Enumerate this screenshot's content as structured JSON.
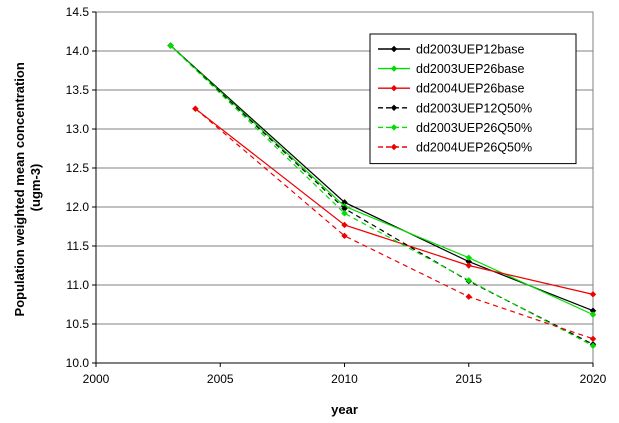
{
  "chart_data": {
    "type": "line",
    "title": "",
    "xlabel": "year",
    "ylabel": "Population weighted mean concentration (ugm-3)",
    "ylabel_lines": [
      "Population weighted mean concentration",
      "(ugm-3)"
    ],
    "xlim": [
      2000,
      2020
    ],
    "ylim": [
      10.0,
      14.5
    ],
    "x_ticks": [
      2000,
      2005,
      2010,
      2015,
      2020
    ],
    "y_ticks": [
      10.0,
      10.5,
      11.0,
      11.5,
      12.0,
      12.5,
      13.0,
      13.5,
      14.0,
      14.5
    ],
    "x_tick_labels": [
      "2000",
      "2005",
      "2010",
      "2015",
      "2020"
    ],
    "y_tick_labels": [
      "10.0",
      "10.5",
      "11.0",
      "11.5",
      "12.0",
      "12.5",
      "13.0",
      "13.5",
      "14.0",
      "14.5"
    ],
    "grid": "horizontal",
    "legend_position": "top-right",
    "series": [
      {
        "name": "dd2003UEP12base",
        "color": "#000000",
        "dashed": false,
        "x": [
          2003,
          2010,
          2015,
          2020
        ],
        "y": [
          14.07,
          12.06,
          11.3,
          10.67
        ]
      },
      {
        "name": "dd2003UEP26base",
        "color": "#00dd00",
        "dashed": false,
        "x": [
          2003,
          2010,
          2015,
          2020
        ],
        "y": [
          14.07,
          12.01,
          11.35,
          10.62
        ]
      },
      {
        "name": "dd2004UEP26base",
        "color": "#ee0000",
        "dashed": false,
        "x": [
          2004,
          2010,
          2015,
          2020
        ],
        "y": [
          13.26,
          11.77,
          11.25,
          10.88
        ]
      },
      {
        "name": "dd2003UEP12Q50%",
        "color": "#000000",
        "dashed": true,
        "x": [
          2003,
          2010,
          2015,
          2020
        ],
        "y": [
          14.07,
          11.98,
          11.05,
          10.24
        ]
      },
      {
        "name": "dd2003UEP26Q50%",
        "color": "#00dd00",
        "dashed": true,
        "x": [
          2003,
          2010,
          2015,
          2020
        ],
        "y": [
          14.07,
          11.92,
          11.06,
          10.22
        ]
      },
      {
        "name": "dd2004UEP26Q50%",
        "color": "#ee0000",
        "dashed": true,
        "x": [
          2004,
          2010,
          2015,
          2020
        ],
        "y": [
          13.26,
          11.63,
          10.85,
          10.31
        ]
      }
    ]
  }
}
